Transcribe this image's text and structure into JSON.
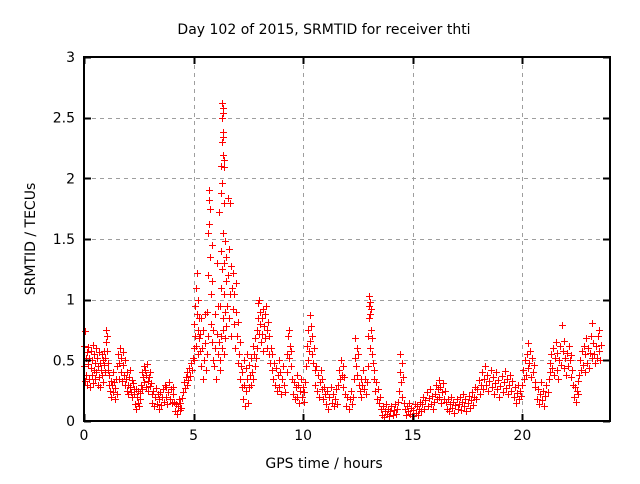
{
  "chart_data": {
    "type": "scatter",
    "title": "Day 102 of 2015, SRMTID for receiver thti",
    "xlabel": "GPS time / hours",
    "ylabel": "SRMTID / TECUs",
    "xlim": [
      0,
      24
    ],
    "ylim": [
      0,
      3
    ],
    "xticks": [
      0,
      5,
      10,
      15,
      20
    ],
    "yticks": [
      0,
      0.5,
      1,
      1.5,
      2,
      2.5,
      3
    ],
    "grid": true,
    "legend": "none",
    "marker": "plus-icon",
    "marker_color": "#ff0000",
    "grid_color": "#9e9e9e",
    "axis_color": "#000000",
    "points": [
      0.0,
      0.45,
      0.02,
      0.62,
      0.04,
      0.33,
      0.05,
      0.74,
      0.07,
      0.52,
      0.1,
      0.38,
      0.12,
      0.57,
      0.15,
      0.3,
      0.17,
      0.47,
      0.2,
      0.61,
      0.22,
      0.35,
      0.25,
      0.52,
      0.27,
      0.28,
      0.3,
      0.44,
      0.32,
      0.58,
      0.35,
      0.38,
      0.37,
      0.5,
      0.4,
      0.31,
      0.42,
      0.63,
      0.45,
      0.42,
      0.47,
      0.55,
      0.5,
      0.35,
      0.52,
      0.48,
      0.55,
      0.6,
      0.57,
      0.4,
      0.6,
      0.52,
      0.62,
      0.3,
      0.65,
      0.45,
      0.67,
      0.57,
      0.7,
      0.36,
      0.72,
      0.48,
      0.75,
      0.28,
      0.77,
      0.42,
      0.8,
      0.55,
      0.82,
      0.38,
      0.85,
      0.5,
      0.87,
      0.32,
      0.9,
      0.46,
      0.92,
      0.58,
      0.95,
      0.4,
      0.97,
      0.52,
      1.0,
      0.65,
      1.02,
      0.75,
      1.04,
      0.58,
      1.06,
      0.7,
      1.08,
      0.48,
      1.1,
      0.42,
      1.13,
      0.3,
      1.16,
      0.38,
      1.19,
      0.25,
      1.22,
      0.33,
      1.25,
      0.2,
      1.28,
      0.3,
      1.31,
      0.4,
      1.34,
      0.24,
      1.37,
      0.32,
      1.4,
      0.18,
      1.43,
      0.27,
      1.46,
      0.35,
      1.49,
      0.22,
      1.52,
      0.45,
      1.55,
      0.55,
      1.58,
      0.35,
      1.61,
      0.48,
      1.64,
      0.6,
      1.67,
      0.4,
      1.7,
      0.52,
      1.73,
      0.33,
      1.76,
      0.46,
      1.79,
      0.57,
      1.82,
      0.38,
      1.85,
      0.5,
      1.88,
      0.3,
      1.91,
      0.35,
      1.94,
      0.25,
      1.97,
      0.4,
      2.0,
      0.3,
      2.03,
      0.22,
      2.06,
      0.36,
      2.09,
      0.28,
      2.12,
      0.42,
      2.15,
      0.24,
      2.18,
      0.34,
      2.21,
      0.2,
      2.24,
      0.31,
      2.27,
      0.26,
      2.3,
      0.22,
      2.33,
      0.14,
      2.36,
      0.26,
      2.39,
      0.1,
      2.42,
      0.2,
      2.45,
      0.15,
      2.48,
      0.25,
      2.51,
      0.12,
      2.54,
      0.18,
      2.57,
      0.23,
      2.6,
      0.3,
      2.63,
      0.4,
      2.66,
      0.26,
      2.69,
      0.36,
      2.72,
      0.45,
      2.75,
      0.32,
      2.78,
      0.42,
      2.81,
      0.28,
      2.84,
      0.38,
      2.87,
      0.47,
      2.9,
      0.33,
      2.93,
      0.25,
      2.96,
      0.36,
      2.99,
      0.29,
      3.02,
      0.4,
      3.05,
      0.31,
      3.08,
      0.22,
      3.12,
      0.15,
      3.16,
      0.25,
      3.2,
      0.12,
      3.24,
      0.2,
      3.28,
      0.27,
      3.32,
      0.14,
      3.36,
      0.22,
      3.4,
      0.1,
      3.44,
      0.18,
      3.48,
      0.24,
      3.52,
      0.13,
      3.56,
      0.2,
      3.6,
      0.26,
      3.64,
      0.16,
      3.68,
      0.3,
      3.72,
      0.2,
      3.76,
      0.28,
      3.8,
      0.14,
      3.84,
      0.24,
      3.88,
      0.32,
      3.92,
      0.18,
      3.96,
      0.26,
      4.0,
      0.15,
      4.04,
      0.22,
      4.08,
      0.28,
      4.12,
      0.16,
      4.16,
      0.08,
      4.2,
      0.14,
      4.24,
      0.06,
      4.28,
      0.12,
      4.32,
      0.18,
      4.36,
      0.09,
      4.4,
      0.15,
      4.44,
      0.11,
      4.48,
      0.19,
      4.52,
      0.24,
      4.56,
      0.32,
      4.6,
      0.27,
      4.64,
      0.36,
      4.68,
      0.3,
      4.72,
      0.4,
      4.76,
      0.34,
      4.8,
      0.44,
      4.84,
      0.37,
      4.88,
      0.48,
      4.92,
      0.42,
      4.96,
      0.52,
      5.0,
      0.6,
      5.02,
      0.8,
      5.04,
      0.5,
      5.06,
      0.95,
      5.08,
      0.7,
      5.1,
      1.1,
      5.12,
      0.62,
      5.14,
      0.88,
      5.16,
      1.22,
      5.18,
      0.75,
      5.2,
      0.55,
      5.22,
      1.0,
      5.24,
      0.68,
      5.26,
      0.85,
      5.28,
      0.58,
      5.3,
      0.72,
      5.33,
      0.45,
      5.36,
      0.85,
      5.39,
      0.6,
      5.42,
      0.35,
      5.45,
      0.75,
      5.48,
      0.5,
      5.51,
      0.88,
      5.54,
      0.64,
      5.57,
      0.42,
      5.6,
      0.55,
      5.62,
      0.9,
      5.64,
      1.2,
      5.66,
      0.7,
      5.68,
      1.55,
      5.7,
      1.82,
      5.71,
      1.9,
      5.72,
      1.62,
      5.74,
      1.75,
      5.76,
      1.35,
      5.78,
      1.05,
      5.8,
      0.8,
      5.82,
      1.45,
      5.84,
      0.65,
      5.86,
      1.15,
      5.88,
      0.5,
      5.9,
      0.75,
      5.93,
      0.45,
      5.96,
      0.88,
      5.99,
      0.6,
      6.02,
      0.35,
      6.05,
      0.72,
      6.08,
      1.3,
      6.1,
      0.55,
      6.12,
      0.95,
      6.15,
      1.72,
      6.17,
      0.65,
      6.19,
      0.42,
      6.21,
      0.5,
      6.22,
      0.95,
      6.23,
      1.4,
      6.24,
      0.7,
      6.25,
      1.1,
      6.26,
      1.88,
      6.27,
      2.1,
      6.28,
      1.96,
      6.28,
      0.6,
      6.29,
      2.3,
      6.3,
      2.5,
      6.3,
      1.25,
      6.31,
      2.62,
      6.32,
      2.54,
      6.32,
      0.85,
      6.33,
      2.58,
      6.34,
      2.34,
      6.34,
      1.55,
      6.35,
      2.38,
      6.36,
      2.19,
      6.36,
      0.75,
      6.37,
      2.15,
      6.38,
      2.09,
      6.38,
      1.05,
      6.39,
      1.8,
      6.4,
      0.55,
      6.41,
      1.3,
      6.42,
      0.9,
      6.43,
      1.48,
      6.44,
      0.68,
      6.46,
      1.15,
      6.48,
      0.78,
      6.5,
      1.35,
      6.52,
      0.95,
      6.55,
      1.84,
      6.57,
      1.2,
      6.6,
      0.85,
      6.62,
      1.42,
      6.65,
      1.8,
      6.67,
      1.05,
      6.7,
      1.28,
      6.72,
      0.7,
      6.75,
      1.1,
      6.78,
      0.92,
      6.8,
      1.22,
      6.83,
      0.8,
      6.86,
      1.05,
      6.89,
      0.6,
      6.92,
      0.9,
      6.95,
      1.14,
      6.98,
      0.7,
      7.01,
      0.48,
      7.04,
      0.82,
      7.07,
      0.55,
      7.1,
      0.35,
      7.13,
      0.65,
      7.16,
      0.45,
      7.19,
      0.28,
      7.22,
      0.4,
      7.25,
      0.18,
      7.28,
      0.5,
      7.31,
      0.3,
      7.34,
      0.12,
      7.37,
      0.44,
      7.4,
      0.25,
      7.43,
      0.55,
      7.46,
      0.35,
      7.49,
      0.15,
      7.52,
      0.46,
      7.55,
      0.28,
      7.58,
      0.38,
      7.61,
      0.3,
      7.64,
      0.52,
      7.67,
      0.4,
      7.7,
      0.62,
      7.73,
      0.35,
      7.76,
      0.55,
      7.79,
      0.45,
      7.82,
      0.68,
      7.85,
      0.52,
      7.88,
      0.75,
      7.91,
      0.6,
      7.94,
      0.85,
      7.96,
      0.97,
      7.98,
      0.72,
      8.0,
      1.0,
      8.02,
      0.8,
      8.05,
      0.9,
      8.08,
      0.65,
      8.1,
      0.85,
      8.13,
      0.72,
      8.16,
      0.92,
      8.19,
      0.58,
      8.22,
      0.78,
      8.25,
      0.88,
      8.28,
      0.68,
      8.31,
      0.95,
      8.34,
      0.75,
      8.37,
      0.6,
      8.4,
      0.82,
      8.43,
      0.55,
      8.46,
      0.7,
      8.49,
      0.48,
      8.52,
      0.6,
      8.56,
      0.42,
      8.6,
      0.55,
      8.64,
      0.35,
      8.68,
      0.48,
      8.72,
      0.3,
      8.76,
      0.44,
      8.8,
      0.25,
      8.84,
      0.38,
      8.88,
      0.5,
      8.92,
      0.28,
      8.96,
      0.4,
      9.0,
      0.22,
      9.04,
      0.35,
      9.08,
      0.45,
      9.12,
      0.3,
      9.16,
      0.24,
      9.25,
      0.4,
      9.28,
      0.55,
      9.31,
      0.7,
      9.34,
      0.75,
      9.37,
      0.52,
      9.4,
      0.62,
      9.43,
      0.45,
      9.46,
      0.58,
      9.5,
      0.35,
      9.54,
      0.22,
      9.58,
      0.32,
      9.62,
      0.18,
      9.66,
      0.28,
      9.7,
      0.38,
      9.74,
      0.2,
      9.78,
      0.3,
      9.82,
      0.15,
      9.86,
      0.25,
      9.9,
      0.35,
      9.94,
      0.2,
      9.98,
      0.28,
      10.02,
      0.16,
      10.06,
      0.24,
      10.1,
      0.32,
      10.15,
      0.45,
      10.18,
      0.62,
      10.21,
      0.5,
      10.24,
      0.75,
      10.27,
      0.58,
      10.3,
      0.87,
      10.33,
      0.66,
      10.36,
      0.78,
      10.39,
      0.55,
      10.42,
      0.7,
      10.45,
      0.48,
      10.48,
      0.6,
      10.52,
      0.42,
      10.56,
      0.3,
      10.6,
      0.45,
      10.64,
      0.25,
      10.68,
      0.38,
      10.72,
      0.2,
      10.76,
      0.32,
      10.8,
      0.42,
      10.84,
      0.26,
      10.88,
      0.35,
      10.92,
      0.18,
      10.96,
      0.28,
      11.0,
      0.22,
      11.05,
      0.14,
      11.1,
      0.25,
      11.15,
      0.1,
      11.2,
      0.2,
      11.25,
      0.28,
      11.3,
      0.15,
      11.35,
      0.22,
      11.4,
      0.12,
      11.45,
      0.18,
      11.5,
      0.26,
      11.55,
      0.14,
      11.6,
      0.3,
      11.64,
      0.42,
      11.68,
      0.35,
      11.72,
      0.5,
      11.76,
      0.38,
      11.8,
      0.45,
      11.84,
      0.28,
      11.88,
      0.36,
      11.92,
      0.22,
      11.97,
      0.12,
      12.02,
      0.2,
      12.07,
      0.1,
      12.12,
      0.18,
      12.17,
      0.25,
      12.22,
      0.14,
      12.27,
      0.2,
      12.32,
      0.35,
      12.35,
      0.52,
      12.38,
      0.68,
      12.41,
      0.45,
      12.44,
      0.6,
      12.47,
      0.38,
      12.5,
      0.55,
      12.53,
      0.3,
      12.58,
      0.25,
      12.62,
      0.35,
      12.66,
      0.2,
      12.7,
      0.3,
      12.74,
      0.42,
      12.78,
      0.26,
      12.82,
      0.35,
      12.86,
      0.22,
      12.9,
      0.32,
      12.96,
      0.45,
      12.98,
      0.7,
      13.0,
      0.95,
      13.01,
      1.03,
      13.02,
      0.85,
      13.04,
      0.98,
      13.05,
      0.6,
      13.07,
      0.88,
      13.08,
      0.75,
      13.1,
      0.92,
      13.12,
      0.55,
      13.14,
      0.68,
      13.17,
      0.48,
      13.21,
      0.35,
      13.25,
      0.42,
      13.29,
      0.25,
      13.33,
      0.32,
      13.37,
      0.18,
      13.41,
      0.26,
      13.45,
      0.15,
      13.49,
      0.2,
      13.53,
      0.1,
      13.58,
      0.05,
      13.63,
      0.12,
      13.68,
      0.03,
      13.73,
      0.08,
      13.78,
      0.14,
      13.83,
      0.06,
      13.88,
      0.1,
      13.93,
      0.04,
      13.98,
      0.08,
      14.03,
      0.12,
      14.08,
      0.05,
      14.13,
      0.09,
      14.18,
      0.14,
      14.23,
      0.06,
      14.28,
      0.1,
      14.33,
      0.16,
      14.38,
      0.25,
      14.41,
      0.4,
      14.44,
      0.55,
      14.47,
      0.32,
      14.5,
      0.48,
      14.53,
      0.2,
      14.56,
      0.36,
      14.59,
      0.15,
      14.63,
      0.1,
      14.68,
      0.05,
      14.73,
      0.12,
      14.78,
      0.08,
      14.83,
      0.15,
      14.88,
      0.06,
      14.93,
      0.11,
      14.98,
      0.04,
      15.03,
      0.09,
      15.08,
      0.14,
      15.13,
      0.07,
      15.18,
      0.12,
      15.23,
      0.05,
      15.28,
      0.1,
      15.33,
      0.16,
      15.38,
      0.08,
      15.43,
      0.14,
      15.48,
      0.2,
      15.53,
      0.1,
      15.58,
      0.17,
      15.63,
      0.24,
      15.68,
      0.12,
      15.73,
      0.19,
      15.78,
      0.26,
      15.83,
      0.14,
      15.88,
      0.21,
      15.93,
      0.1,
      15.98,
      0.16,
      16.02,
      0.22,
      16.06,
      0.3,
      16.1,
      0.18,
      16.14,
      0.26,
      16.18,
      0.34,
      16.22,
      0.2,
      16.26,
      0.28,
      16.3,
      0.15,
      16.34,
      0.24,
      16.38,
      0.31,
      16.42,
      0.18,
      16.46,
      0.25,
      16.5,
      0.16,
      16.55,
      0.1,
      16.6,
      0.18,
      16.65,
      0.08,
      16.7,
      0.14,
      16.75,
      0.2,
      16.8,
      0.11,
      16.85,
      0.16,
      16.9,
      0.07,
      16.95,
      0.13,
      17.0,
      0.18,
      17.05,
      0.1,
      17.1,
      0.14,
      17.15,
      0.2,
      17.2,
      0.09,
      17.25,
      0.16,
      17.3,
      0.22,
      17.35,
      0.12,
      17.4,
      0.18,
      17.45,
      0.08,
      17.5,
      0.15,
      17.55,
      0.21,
      17.6,
      0.11,
      17.65,
      0.17,
      17.7,
      0.24,
      17.75,
      0.13,
      17.8,
      0.2,
      17.85,
      0.28,
      17.9,
      0.18,
      17.95,
      0.26,
      18.0,
      0.34,
      18.05,
      0.22,
      18.1,
      0.3,
      18.15,
      0.4,
      18.2,
      0.26,
      18.25,
      0.35,
      18.3,
      0.45,
      18.35,
      0.3,
      18.4,
      0.38,
      18.45,
      0.25,
      18.5,
      0.33,
      18.55,
      0.42,
      18.6,
      0.28,
      18.65,
      0.36,
      18.7,
      0.22,
      18.75,
      0.31,
      18.8,
      0.4,
      18.85,
      0.26,
      18.9,
      0.34,
      18.95,
      0.2,
      19.0,
      0.29,
      19.05,
      0.37,
      19.1,
      0.24,
      19.15,
      0.32,
      19.2,
      0.41,
      19.25,
      0.27,
      19.3,
      0.35,
      19.35,
      0.22,
      19.4,
      0.3,
      19.45,
      0.38,
      19.5,
      0.25,
      19.55,
      0.33,
      19.6,
      0.2,
      19.65,
      0.28,
      19.7,
      0.15,
      19.75,
      0.23,
      19.8,
      0.3,
      19.85,
      0.18,
      19.9,
      0.25,
      19.95,
      0.21,
      20.0,
      0.3,
      20.04,
      0.42,
      20.08,
      0.35,
      20.12,
      0.5,
      20.16,
      0.38,
      20.2,
      0.55,
      20.24,
      0.44,
      20.28,
      0.64,
      20.32,
      0.48,
      20.36,
      0.58,
      20.4,
      0.36,
      20.44,
      0.52,
      20.48,
      0.4,
      20.52,
      0.46,
      20.56,
      0.32,
      20.6,
      0.28,
      20.65,
      0.18,
      20.7,
      0.26,
      20.75,
      0.14,
      20.8,
      0.22,
      20.85,
      0.32,
      20.9,
      0.17,
      20.95,
      0.25,
      21.0,
      0.12,
      21.05,
      0.21,
      21.1,
      0.3,
      21.15,
      0.24,
      21.2,
      0.35,
      21.24,
      0.48,
      21.28,
      0.4,
      21.32,
      0.55,
      21.36,
      0.44,
      21.4,
      0.6,
      21.44,
      0.38,
      21.48,
      0.52,
      21.52,
      0.65,
      21.56,
      0.42,
      21.6,
      0.56,
      21.64,
      0.35,
      21.68,
      0.5,
      21.72,
      0.62,
      21.76,
      0.46,
      21.8,
      0.79,
      21.84,
      0.58,
      21.88,
      0.44,
      21.92,
      0.66,
      21.96,
      0.52,
      22.0,
      0.38,
      22.04,
      0.56,
      22.08,
      0.45,
      22.12,
      0.62,
      22.16,
      0.5,
      22.2,
      0.36,
      22.24,
      0.54,
      22.28,
      0.42,
      22.32,
      0.3,
      22.36,
      0.2,
      22.4,
      0.28,
      22.44,
      0.16,
      22.48,
      0.25,
      22.52,
      0.33,
      22.56,
      0.22,
      22.6,
      0.38,
      22.64,
      0.5,
      22.68,
      0.42,
      22.72,
      0.58,
      22.76,
      0.46,
      22.8,
      0.62,
      22.84,
      0.4,
      22.88,
      0.55,
      22.92,
      0.68,
      22.96,
      0.48,
      23.0,
      0.6,
      23.04,
      0.44,
      23.08,
      0.56,
      23.12,
      0.7,
      23.16,
      0.52,
      23.2,
      0.81,
      23.24,
      0.64,
      23.28,
      0.55,
      23.32,
      0.48,
      23.36,
      0.62,
      23.4,
      0.52,
      23.44,
      0.7,
      23.48,
      0.58,
      23.52,
      0.75,
      23.56,
      0.5,
      23.6,
      0.63
    ]
  }
}
